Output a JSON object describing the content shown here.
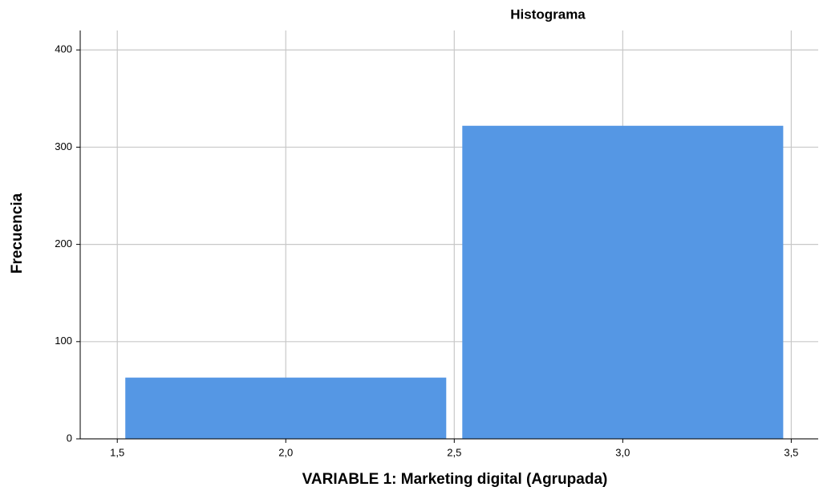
{
  "chart_data": {
    "type": "histogram",
    "title": "Histograma",
    "x_label": "VARIABLE 1: Marketing digital (Agrupada)",
    "y_label": "Frecuencia",
    "bins": [
      1.5,
      2.5,
      3.5
    ],
    "values": [
      63,
      322
    ],
    "color": "#5597e4",
    "xlim": [
      1.39,
      3.58
    ],
    "ylim": [
      0,
      420
    ],
    "xticks": [
      {
        "value": 1.5,
        "label": "1,5"
      },
      {
        "value": 2.0,
        "label": "2,0"
      },
      {
        "value": 2.5,
        "label": "2,5"
      },
      {
        "value": 3.0,
        "label": "3,0"
      },
      {
        "value": 3.5,
        "label": "3,5"
      }
    ],
    "yticks": [
      0,
      100,
      200,
      300,
      400
    ],
    "grid": true
  }
}
